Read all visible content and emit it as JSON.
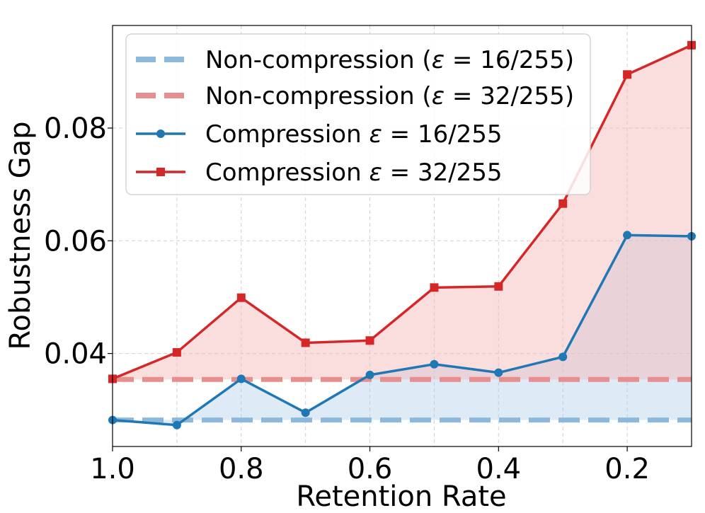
{
  "chart_data": {
    "type": "line",
    "xlabel": "Retention Rate",
    "ylabel": "Robustness Gap",
    "x": [
      1.0,
      0.9,
      0.8,
      0.7,
      0.6,
      0.5,
      0.4,
      0.3,
      0.2,
      0.1
    ],
    "xlim": [
      1.0,
      0.1
    ],
    "ylim": [
      0.0235,
      0.0982
    ],
    "xticks": [
      1.0,
      0.8,
      0.6,
      0.4,
      0.2
    ],
    "xtick_labels": [
      "1.0",
      "0.8",
      "0.6",
      "0.4",
      "0.2"
    ],
    "yticks": [
      0.04,
      0.06,
      0.08
    ],
    "ytick_labels": [
      "0.04",
      "0.06",
      "0.08"
    ],
    "grid": true,
    "legend_position": "top-left",
    "baselines": [
      {
        "name": "Non-compression",
        "eps": "16/255",
        "value": 0.0282,
        "color": "#8bb8db"
      },
      {
        "name": "Non-compression",
        "eps": "32/255",
        "value": 0.0354,
        "color": "#e78f8f"
      }
    ],
    "series": [
      {
        "name": "Compression",
        "eps": "16/255",
        "marker": "circle",
        "color": "#1f77b4",
        "fill": "#a9c9e6",
        "values": [
          0.0282,
          0.0273,
          0.0355,
          0.0295,
          0.0362,
          0.0381,
          0.0366,
          0.0394,
          0.061,
          0.0608
        ]
      },
      {
        "name": "Compression",
        "eps": "32/255",
        "marker": "square",
        "color": "#d62728",
        "fill": "#f4b9bb",
        "values": [
          0.0355,
          0.0402,
          0.0499,
          0.0419,
          0.0423,
          0.0517,
          0.0519,
          0.0666,
          0.0895,
          0.0947
        ]
      }
    ],
    "legend": [
      {
        "prefix": "Non-compression (",
        "eps_symbol": "ε",
        "eq": " = ",
        "value": "16/255",
        "suffix": ")"
      },
      {
        "prefix": "Non-compression (",
        "eps_symbol": "ε",
        "eq": " = ",
        "value": "32/255",
        "suffix": ")"
      },
      {
        "prefix": "Compression ",
        "eps_symbol": "ε",
        "eq": " = ",
        "value": "16/255",
        "suffix": ""
      },
      {
        "prefix": "Compression ",
        "eps_symbol": "ε",
        "eq": " = ",
        "value": "32/255",
        "suffix": ""
      }
    ]
  }
}
